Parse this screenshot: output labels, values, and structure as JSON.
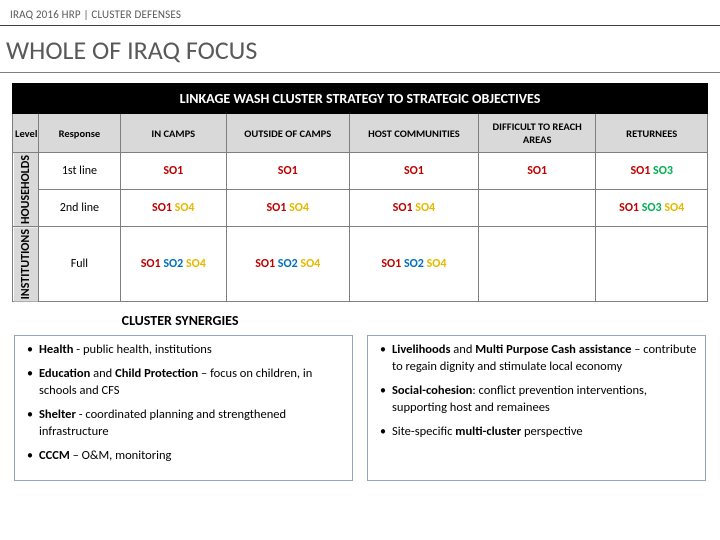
{
  "header": {
    "label": "IRAQ 2016 HRP | CLUSTER DEFENSES"
  },
  "title": "WHOLE OF IRAQ FOCUS",
  "table": {
    "banner": "LINKAGE WASH CLUSTER STRATEGY TO STRATEGIC OBJECTIVES",
    "side_top": "HOUSEHOLDS",
    "side_bottom": "INSTITUTIONS",
    "headings": [
      "Level",
      "Response",
      "IN CAMPS",
      "OUTSIDE OF CAMPS",
      "HOST COMMUNITIES",
      "DIFFICULT TO REACH AREAS",
      "RETURNEES"
    ],
    "rows": [
      {
        "label": "1st line",
        "cells": [
          [
            "SO1"
          ],
          [
            "SO1"
          ],
          [
            "SO1"
          ],
          [
            "SO1"
          ],
          [
            "SO1",
            "SO3"
          ]
        ]
      },
      {
        "label": "2nd line",
        "cells": [
          [
            "SO1",
            "SO4"
          ],
          [
            "SO1",
            "SO4"
          ],
          [
            "SO1",
            "SO4"
          ],
          [],
          [
            "SO1",
            "SO3",
            "SO4"
          ]
        ]
      },
      {
        "label": "Full",
        "cells": [
          [
            "SO1",
            "SO2",
            "SO4"
          ],
          [
            "SO1",
            "SO2",
            "SO4"
          ],
          [
            "SO1",
            "SO2",
            "SO4"
          ],
          [],
          []
        ]
      }
    ],
    "so_colors": {
      "SO1": "#c00000",
      "SO2": "#0070c0",
      "SO3": "#00b050",
      "SO4": "#e6b800"
    }
  },
  "synergies": {
    "title": "CLUSTER SYNERGIES",
    "left": [
      {
        "bold": "Health",
        "rest": " - public health, institutions"
      },
      {
        "bold": "Education",
        "mid": " and ",
        "bold2": "Child Protection",
        "rest": " – focus on children, in schools and CFS"
      },
      {
        "bold": "Shelter",
        "rest": " - coordinated planning and strengthened infrastructure"
      },
      {
        "bold": "CCCM",
        "rest": " – O&M, monitoring"
      }
    ],
    "right": [
      {
        "bold": "Livelihoods",
        "mid": " and ",
        "bold2": "Multi Purpose Cash assistance",
        "rest": " – contribute to regain dignity and stimulate local economy"
      },
      {
        "bold": "Social-cohesion",
        "rest": ": conflict prevention interventions, supporting host and remainees"
      },
      {
        "pre": "Site-specific ",
        "bold": "multi-cluster",
        "rest": " perspective"
      }
    ]
  }
}
